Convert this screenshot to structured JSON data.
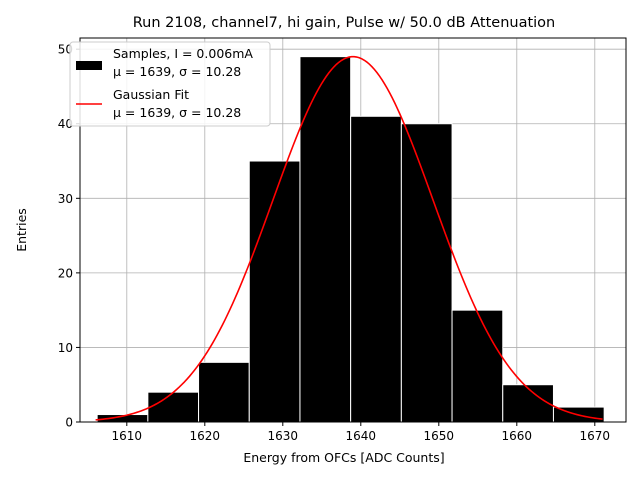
{
  "chart_data": {
    "type": "bar",
    "title": "Run 2108, channel7, hi gain, Pulse w/ 50.0 dB Attenuation",
    "xlabel": "Energy from OFCs [ADC Counts]",
    "ylabel": "Entries",
    "xlim": [
      1604,
      1674
    ],
    "ylim": [
      0,
      51.5
    ],
    "x_ticks": [
      1610,
      1620,
      1630,
      1640,
      1650,
      1660,
      1670
    ],
    "y_ticks": [
      0,
      10,
      20,
      30,
      40,
      50
    ],
    "grid": true,
    "legend_position": "top-left",
    "bins": [
      {
        "x0": 1606.2,
        "x1": 1612.7,
        "count": 1
      },
      {
        "x0": 1612.7,
        "x1": 1619.2,
        "count": 4
      },
      {
        "x0": 1619.2,
        "x1": 1625.7,
        "count": 8
      },
      {
        "x0": 1625.7,
        "x1": 1632.2,
        "count": 35
      },
      {
        "x0": 1632.2,
        "x1": 1638.7,
        "count": 49
      },
      {
        "x0": 1638.7,
        "x1": 1645.2,
        "count": 41
      },
      {
        "x0": 1645.2,
        "x1": 1651.7,
        "count": 40
      },
      {
        "x0": 1651.7,
        "x1": 1658.2,
        "count": 15
      },
      {
        "x0": 1658.2,
        "x1": 1664.7,
        "count": 5
      },
      {
        "x0": 1664.7,
        "x1": 1671.2,
        "count": 2
      }
    ],
    "fit": {
      "mu": 1639,
      "sigma": 10.28,
      "amplitude": 49,
      "x_range": [
        1606,
        1671
      ]
    },
    "series": [
      {
        "name": "Samples, I = 0.006mA",
        "params": "μ = 1639, σ = 10.28",
        "color": "#000000"
      },
      {
        "name": "Gaussian Fit",
        "params": "μ = 1639, σ = 10.28",
        "color": "#ff0000"
      }
    ]
  }
}
